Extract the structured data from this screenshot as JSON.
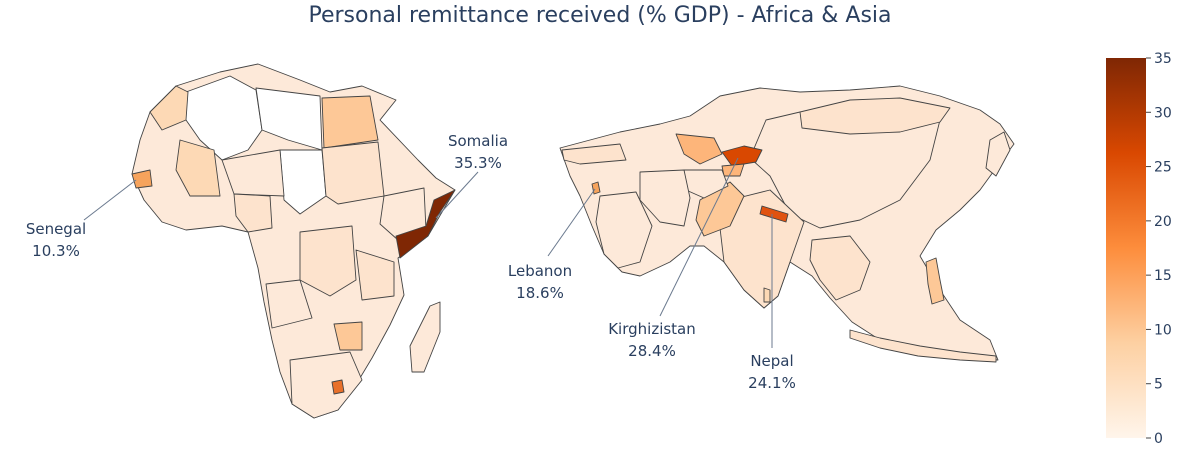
{
  "title": "Personal remittance received (% GDP) - Africa & Asia",
  "colorscale": {
    "min": 0,
    "max": 35,
    "ticks": [
      0,
      5,
      10,
      15,
      20,
      25,
      30,
      35
    ],
    "stops": [
      "#fff5eb",
      "#fdd0a2",
      "#fd8d3c",
      "#d94801",
      "#7f2704"
    ]
  },
  "annotations": [
    {
      "country": "Somalia",
      "label": "Somalia",
      "value_label": "35.3%",
      "value": 35.3
    },
    {
      "country": "Senegal",
      "label": "Senegal",
      "value_label": "10.3%",
      "value": 10.3
    },
    {
      "country": "Lebanon",
      "label": "Lebanon",
      "value_label": "18.6%",
      "value": 18.6
    },
    {
      "country": "Kirghizistan",
      "label": "Kirghizistan",
      "value_label": "28.4%",
      "value": 28.4
    },
    {
      "country": "Nepal",
      "label": "Nepal",
      "value_label": "24.1%",
      "value": 24.1
    }
  ],
  "chart_data": {
    "type": "choropleth",
    "title": "Personal remittance received (% GDP) - Africa & Asia",
    "colorbar_range": [
      0,
      35
    ],
    "colorbar_ticks": [
      0,
      5,
      10,
      15,
      20,
      25,
      30,
      35
    ],
    "regions": [
      {
        "country": "Somalia",
        "value": 35.3
      },
      {
        "country": "Senegal",
        "value": 10.3
      },
      {
        "country": "Lebanon",
        "value": 18.6
      },
      {
        "country": "Kirghizistan",
        "value": 28.4
      },
      {
        "country": "Nepal",
        "value": 24.1
      }
    ]
  }
}
